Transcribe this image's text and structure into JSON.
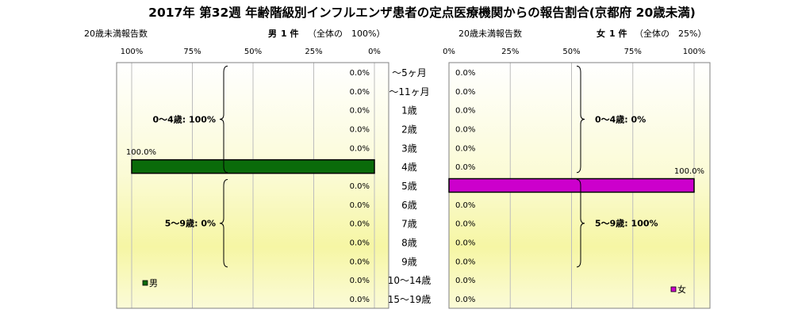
{
  "title": "2017年 第32週 年齢階級別インフルエンザ患者の定点医療機関からの報告割合(京都府 20歳未満)",
  "left_header": {
    "caption": "20歳未満報告数",
    "sex": "男",
    "count_text": "1 件",
    "share_text": "（全体の　100%）"
  },
  "right_header": {
    "caption": "20歳未満報告数",
    "sex": "女",
    "count_text": "1 件",
    "share_text": "（全体の　25%）"
  },
  "chart_data": {
    "type": "bar",
    "orientation": "horizontal-butterfly",
    "title": "2017年 第32週 年齢階級別インフルエンザ患者の定点医療機関からの報告割合(京都府 20歳未満)",
    "categories": [
      "～5ヶ月",
      "～11ヶ月",
      "1歳",
      "2歳",
      "3歳",
      "4歳",
      "5歳",
      "6歳",
      "7歳",
      "8歳",
      "9歳",
      "10～14歳",
      "15～19歳"
    ],
    "xlim": [
      0,
      100
    ],
    "ticks": [
      "0%",
      "25%",
      "50%",
      "75%",
      "100%"
    ],
    "grid": true,
    "series": [
      {
        "name": "男",
        "color": "#0a6b0a",
        "values": [
          0,
          0,
          0,
          0,
          0,
          100,
          0,
          0,
          0,
          0,
          0,
          0,
          0
        ],
        "labels": [
          "0.0%",
          "0.0%",
          "0.0%",
          "0.0%",
          "0.0%",
          "100.0%",
          "0.0%",
          "0.0%",
          "0.0%",
          "0.0%",
          "0.0%",
          "0.0%",
          "0.0%"
        ],
        "group_labels": {
          "g04": "0～4歳: 100%",
          "g59": "5～9歳: 0%"
        }
      },
      {
        "name": "女",
        "color": "#cc00cc",
        "values": [
          0,
          0,
          0,
          0,
          0,
          0,
          100,
          0,
          0,
          0,
          0,
          0,
          0
        ],
        "labels": [
          "0.0%",
          "0.0%",
          "0.0%",
          "0.0%",
          "0.0%",
          "0.0%",
          "100.0%",
          "0.0%",
          "0.0%",
          "0.0%",
          "0.0%",
          "0.0%",
          "0.0%"
        ],
        "group_labels": {
          "g04": "0～4歳: 0%",
          "g59": "5～9歳: 100%"
        }
      }
    ]
  }
}
